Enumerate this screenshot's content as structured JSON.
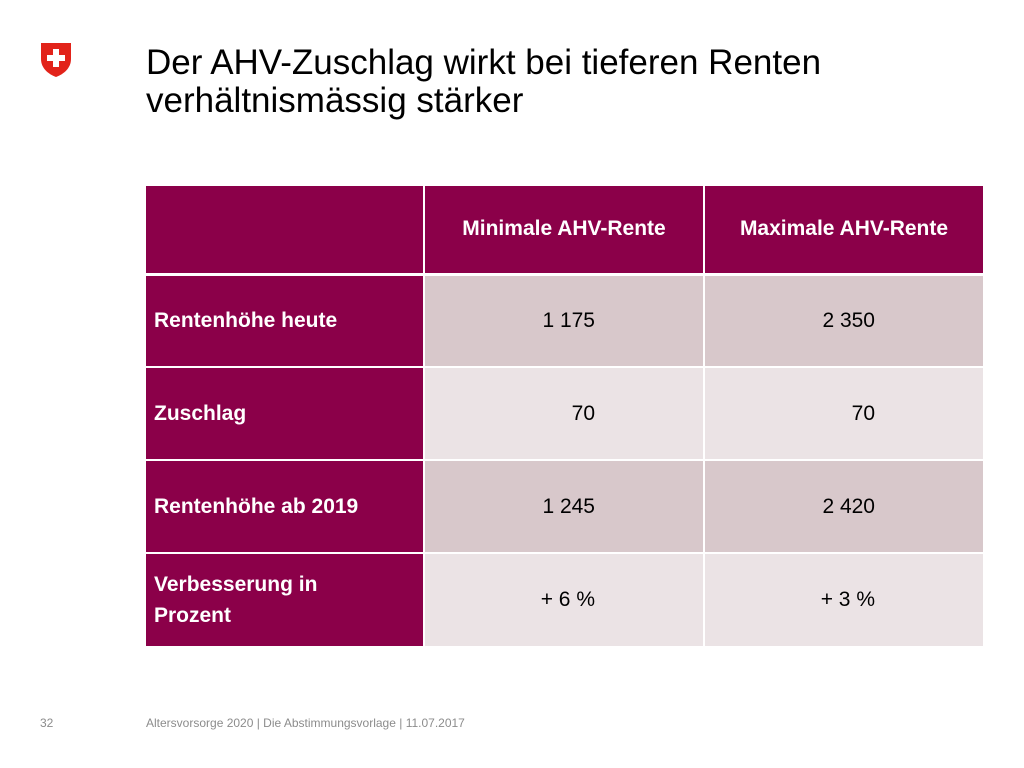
{
  "slide": {
    "logo_icon": "swiss-cross-shield-icon",
    "title_lines": [
      "Der AHV-Zuschlag wirkt bei tieferen Renten",
      "verhältnismässig stärker"
    ],
    "footer": {
      "page_number": "32",
      "text": "Altersvorsorge 2020 | Die Abstimmungsvorlage | 11.07.2017"
    }
  },
  "table": {
    "headers": [
      "",
      "Minimale AHV-Rente",
      "Maximale AHV-Rente"
    ],
    "rows": [
      {
        "label": "Rentenhöhe heute",
        "min": "1 175",
        "max": "2 350"
      },
      {
        "label": "Zuschlag",
        "min": "70",
        "max": "70"
      },
      {
        "label": "Rentenhöhe ab 2019",
        "min": "1 245",
        "max": "2 420"
      },
      {
        "label_lines": [
          "Verbesserung in",
          "Prozent"
        ],
        "min": "+ 6 %",
        "max": "+ 3 %"
      }
    ]
  },
  "colors": {
    "accent": "#8b0049",
    "cell_dark": "#d8c8cb",
    "cell_light": "#ebe3e5",
    "logo_red": "#e2231a",
    "footer_gray": "#8c8c8c"
  }
}
